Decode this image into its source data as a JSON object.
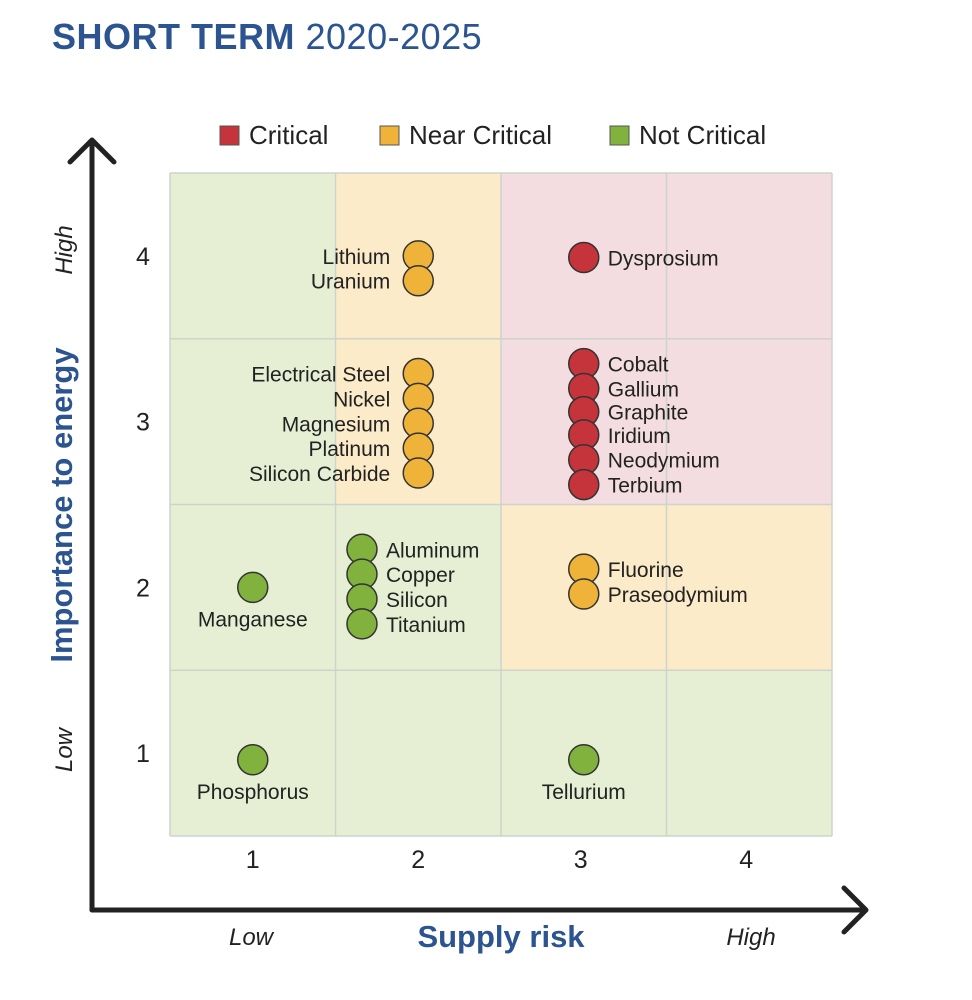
{
  "title": {
    "bold": "SHORT TERM",
    "light": "2020-2025"
  },
  "colors": {
    "critical": "#c4343a",
    "near_critical": "#f0b33a",
    "not_critical": "#80b23d",
    "bg_critical": "#f3dde0",
    "bg_near_critical": "#fbebc8",
    "bg_not_critical": "#e6efd4",
    "title": "#2b5490"
  },
  "chart_data": {
    "type": "scatter",
    "title": "SHORT TERM 2020-2025",
    "xlabel": "Supply risk",
    "ylabel": "Importance to energy",
    "x_low_label": "Low",
    "x_high_label": "High",
    "y_low_label": "Low",
    "y_high_label": "High",
    "xlim": [
      0.5,
      4.5
    ],
    "ylim": [
      0.5,
      4.5
    ],
    "xticks": [
      "1",
      "2",
      "3",
      "4"
    ],
    "yticks": [
      "1",
      "2",
      "3",
      "4"
    ],
    "grid": true,
    "legend_position": "top",
    "legend": [
      {
        "key": "critical",
        "label": "Critical"
      },
      {
        "key": "near_critical",
        "label": "Near Critical"
      },
      {
        "key": "not_critical",
        "label": "Not Critical"
      }
    ],
    "cell_categories": [
      [
        "not_critical",
        "not_critical",
        "not_critical",
        "not_critical"
      ],
      [
        "not_critical",
        "not_critical",
        "near_critical",
        "near_critical"
      ],
      [
        "not_critical",
        "near_critical",
        "critical",
        "critical"
      ],
      [
        "not_critical",
        "near_critical",
        "critical",
        "critical"
      ]
    ],
    "points": [
      {
        "name": "Lithium",
        "x": 2.0,
        "y": 4.0,
        "category": "near_critical",
        "label_side": "left"
      },
      {
        "name": "Uranium",
        "x": 2.0,
        "y": 3.85,
        "category": "near_critical",
        "label_side": "left"
      },
      {
        "name": "Dysprosium",
        "x": 3.0,
        "y": 3.99,
        "category": "critical",
        "label_side": "right"
      },
      {
        "name": "Electrical Steel",
        "x": 2.0,
        "y": 3.29,
        "category": "near_critical",
        "label_side": "left"
      },
      {
        "name": "Nickel",
        "x": 2.0,
        "y": 3.14,
        "category": "near_critical",
        "label_side": "left"
      },
      {
        "name": "Magnesium",
        "x": 2.0,
        "y": 2.99,
        "category": "near_critical",
        "label_side": "left"
      },
      {
        "name": "Platinum",
        "x": 2.0,
        "y": 2.84,
        "category": "near_critical",
        "label_side": "left"
      },
      {
        "name": "Silicon Carbide",
        "x": 2.0,
        "y": 2.69,
        "category": "near_critical",
        "label_side": "left"
      },
      {
        "name": "Cobalt",
        "x": 3.0,
        "y": 3.35,
        "category": "critical",
        "label_side": "right"
      },
      {
        "name": "Gallium",
        "x": 3.0,
        "y": 3.2,
        "category": "critical",
        "label_side": "right"
      },
      {
        "name": "Graphite",
        "x": 3.0,
        "y": 3.06,
        "category": "critical",
        "label_side": "right"
      },
      {
        "name": "Iridium",
        "x": 3.0,
        "y": 2.92,
        "category": "critical",
        "label_side": "right"
      },
      {
        "name": "Neodymium",
        "x": 3.0,
        "y": 2.77,
        "category": "critical",
        "label_side": "right"
      },
      {
        "name": "Terbium",
        "x": 3.0,
        "y": 2.62,
        "category": "critical",
        "label_side": "right"
      },
      {
        "name": "Aluminum",
        "x": 1.66,
        "y": 2.23,
        "category": "not_critical",
        "label_side": "right"
      },
      {
        "name": "Copper",
        "x": 1.66,
        "y": 2.08,
        "category": "not_critical",
        "label_side": "right"
      },
      {
        "name": "Silicon",
        "x": 1.66,
        "y": 1.93,
        "category": "not_critical",
        "label_side": "right"
      },
      {
        "name": "Titanium",
        "x": 1.66,
        "y": 1.78,
        "category": "not_critical",
        "label_side": "right"
      },
      {
        "name": "Manganese",
        "x": 1.0,
        "y": 2.0,
        "category": "not_critical",
        "label_side": "below"
      },
      {
        "name": "Fluorine",
        "x": 3.0,
        "y": 2.11,
        "category": "near_critical",
        "label_side": "right"
      },
      {
        "name": "Praseodymium",
        "x": 3.0,
        "y": 1.96,
        "category": "near_critical",
        "label_side": "right"
      },
      {
        "name": "Phosphorus",
        "x": 1.0,
        "y": 0.96,
        "category": "not_critical",
        "label_side": "below"
      },
      {
        "name": "Tellurium",
        "x": 3.0,
        "y": 0.96,
        "category": "not_critical",
        "label_side": "below"
      }
    ]
  }
}
